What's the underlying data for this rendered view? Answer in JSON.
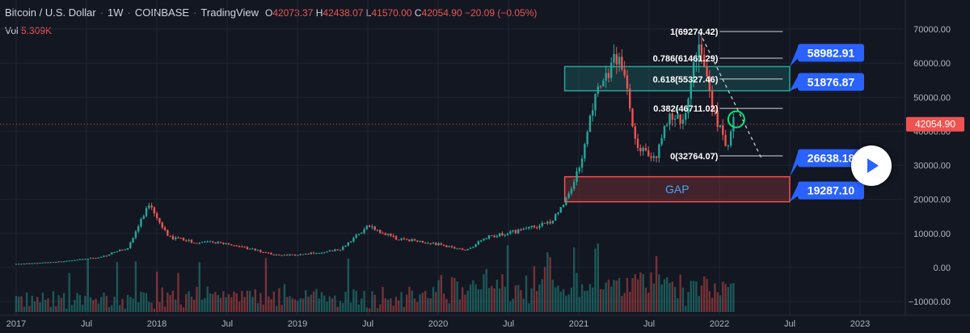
{
  "header": {
    "title": "Bitcoin / U.S. Dollar",
    "interval": "1W",
    "exchange": "COINBASE",
    "source": "TradingView",
    "open_label": "O",
    "open": "42073.37",
    "high_label": "H",
    "high": "42438.07",
    "low_label": "L",
    "low": "41570.00",
    "close_label": "C",
    "close": "42054.90",
    "change": "−20.09 (−0.05%)",
    "volume_label": "Vol",
    "volume": "5.309K"
  },
  "colors": {
    "background": "#131722",
    "up": "#26a69a",
    "down": "#ef5350",
    "accent_blue": "#2962ff",
    "gap_zone": "#ef5350",
    "resistance_zone": "#26a69a",
    "last_price_badge": "#ef5350"
  },
  "chart_data": {
    "type": "candlestick",
    "symbol": "Bitcoin / U.S. Dollar",
    "interval": "1W",
    "x_ticks": [
      "2017",
      "Jul",
      "2018",
      "Jul",
      "2019",
      "Jul",
      "2020",
      "Jul",
      "2021",
      "Jul",
      "2022",
      "Jul",
      "2023"
    ],
    "y_ticks": [
      "70000.00",
      "60000.00",
      "50000.00",
      "40000.00",
      "30000.00",
      "20000.00",
      "10000.00",
      "0.00",
      "−10000.00"
    ],
    "ylim": [
      -12000,
      73000
    ],
    "grid": true,
    "price_path": [
      [
        2017.0,
        1000
      ],
      [
        2017.35,
        1800
      ],
      [
        2017.6,
        3000
      ],
      [
        2017.8,
        6000
      ],
      [
        2017.95,
        19200
      ],
      [
        2018.08,
        9000
      ],
      [
        2018.25,
        7500
      ],
      [
        2018.5,
        7000
      ],
      [
        2018.85,
        3600
      ],
      [
        2019.0,
        3700
      ],
      [
        2019.3,
        5200
      ],
      [
        2019.5,
        12000
      ],
      [
        2019.7,
        8500
      ],
      [
        2019.95,
        7200
      ],
      [
        2020.2,
        5000
      ],
      [
        2020.35,
        9000
      ],
      [
        2020.6,
        11000
      ],
      [
        2020.8,
        13500
      ],
      [
        2020.9,
        19000
      ],
      [
        2021.0,
        29000
      ],
      [
        2021.1,
        48000
      ],
      [
        2021.29,
        63000
      ],
      [
        2021.4,
        37000
      ],
      [
        2021.55,
        32000
      ],
      [
        2021.65,
        45000
      ],
      [
        2021.75,
        43000
      ],
      [
        2021.85,
        66000
      ],
      [
        2021.95,
        47000
      ],
      [
        2022.05,
        36000
      ],
      [
        2022.1,
        42000
      ]
    ],
    "last_price": "42054.90",
    "fibonacci_levels": [
      {
        "label": "1(69274.42)",
        "value": 69274.42
      },
      {
        "label": "0.786(61461.29)",
        "value": 61461.29
      },
      {
        "label": "0.618(55327.46)",
        "value": 55327.46
      },
      {
        "label": "0.382(46711.02)",
        "value": 46711.02
      },
      {
        "label": "0(32764.07)",
        "value": 32764.07
      }
    ],
    "zones": [
      {
        "name": "resistance",
        "top": 58982.91,
        "bottom": 51876.87,
        "x_start": 2020.9,
        "x_end": 2022.5
      },
      {
        "name": "gap",
        "label": "GAP",
        "top": 26638.18,
        "bottom": 19287.1,
        "x_start": 2020.9,
        "x_end": 2022.5
      }
    ],
    "callouts": [
      "58982.91",
      "51876.87",
      "26638.18",
      "19287.10"
    ],
    "trendline": {
      "from": [
        2021.86,
        69000
      ],
      "to": [
        2022.3,
        32000
      ]
    }
  }
}
